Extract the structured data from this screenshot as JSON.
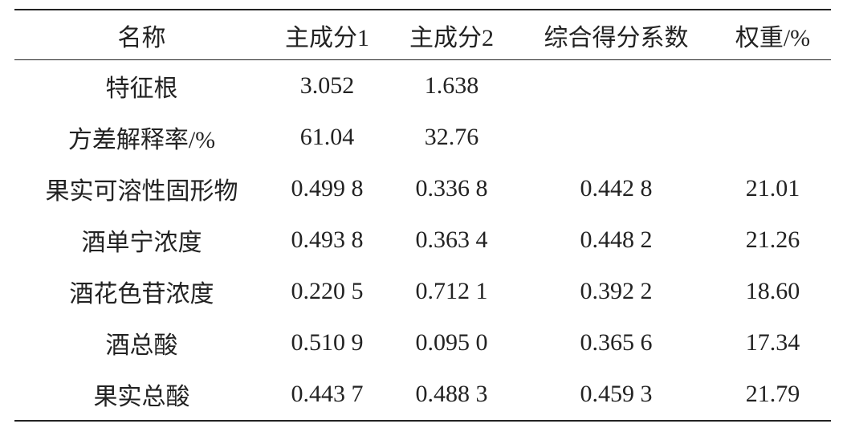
{
  "table": {
    "header": [
      "名称",
      "主成分1",
      "主成分2",
      "综合得分系数",
      "权重/%"
    ],
    "rows": [
      [
        "特征根",
        "3.052",
        "1.638"
      ],
      [
        "方差解释率/%",
        "61.04",
        "32.76"
      ],
      [
        "果实可溶性固形物",
        "0.499 8",
        "0.336 8",
        "0.442 8",
        "21.01"
      ],
      [
        "酒单宁浓度",
        "0.493 8",
        "0.363 4",
        "0.448 2",
        "21.26"
      ],
      [
        "酒花色苷浓度",
        "0.220 5",
        "0.712 1",
        "0.392 2",
        "18.60"
      ],
      [
        "酒总酸",
        "0.510 9",
        "0.095 0",
        "0.365 6",
        "17.34"
      ],
      [
        "果实总酸",
        "0.443 7",
        "0.488 3",
        "0.459 3",
        "21.79"
      ]
    ]
  }
}
